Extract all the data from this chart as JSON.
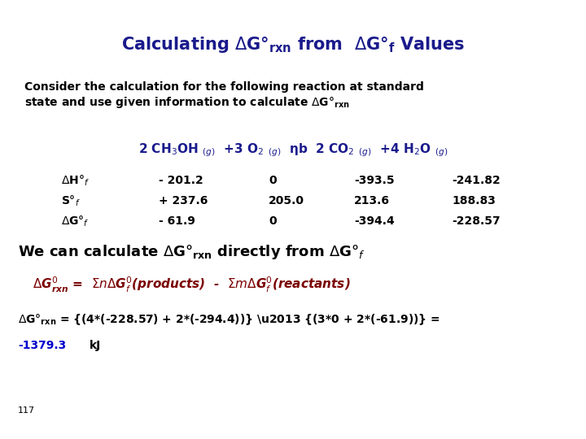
{
  "bg_color": "#ffffff",
  "title_color": "#1a1a8c",
  "body_color": "#000000",
  "dark_red_color": "#7B0000",
  "highlight_blue": "#0000cc",
  "page_number": "117",
  "title_fontsize": 15,
  "subtitle_fontsize": 10,
  "reaction_fontsize": 11,
  "table_fontsize": 10,
  "we_can_fontsize": 13,
  "formula_fontsize": 11,
  "calc_fontsize": 10,
  "result_fontsize": 10,
  "page_fontsize": 8
}
